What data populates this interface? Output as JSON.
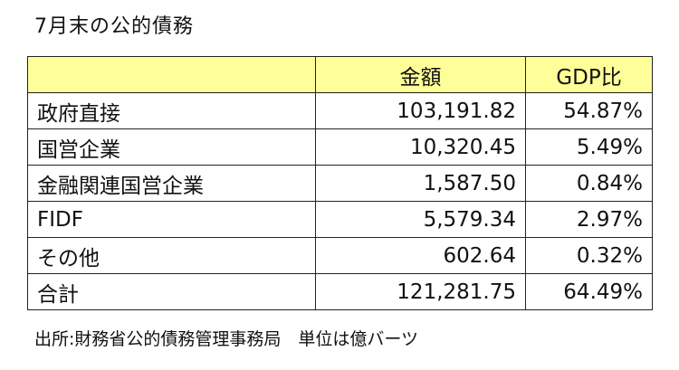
{
  "title": "7月末の公的債務",
  "table": {
    "headers": [
      "",
      "金額",
      "GDP比"
    ],
    "rows": [
      {
        "name": "政府直接",
        "amount": "103,191.82",
        "gdp_ratio": "54.87%"
      },
      {
        "name": "国営企業",
        "amount": "10,320.45",
        "gdp_ratio": "5.49%"
      },
      {
        "name": "金融関連国営企業",
        "amount": "1,587.50",
        "gdp_ratio": "0.84%"
      },
      {
        "name": "FIDF",
        "amount": "5,579.34",
        "gdp_ratio": "2.97%"
      },
      {
        "name": "その他",
        "amount": "602.64",
        "gdp_ratio": "0.32%"
      },
      {
        "name": "合計",
        "amount": "121,281.75",
        "gdp_ratio": "64.49%"
      }
    ]
  },
  "footnote": "出所:財務省公的債務管理事務局　単位は億バーツ",
  "colors": {
    "header_background": "#ffff99",
    "border": "#222222"
  }
}
